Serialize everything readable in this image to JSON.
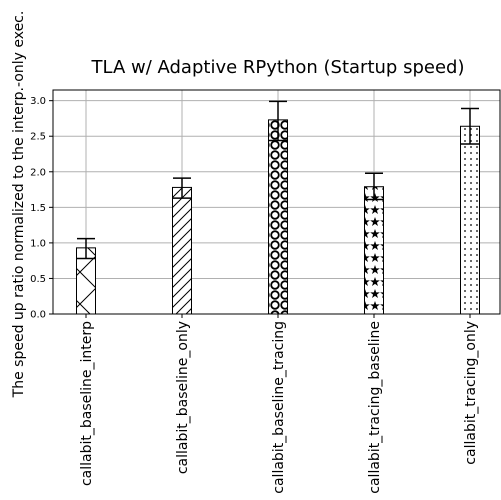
{
  "chart_data": {
    "type": "bar",
    "title": "TLA w/ Adaptive RPython (Startup speed)",
    "xlabel": "",
    "ylabel": "The speed up ratio normalized to the interp.-only exec.",
    "categories": [
      "callabit_baseline_interp",
      "callabit_baseline_only",
      "callabit_baseline_tracing",
      "callabit_tracing_baseline",
      "callabit_tracing_only"
    ],
    "values": [
      0.93,
      1.78,
      2.73,
      1.79,
      2.64
    ],
    "error_low": [
      0.78,
      1.63,
      2.44,
      1.61,
      2.39
    ],
    "error_high": [
      1.06,
      1.91,
      2.99,
      1.98,
      2.89
    ],
    "hatches": [
      "x",
      "slash",
      "circle",
      "star",
      "dot"
    ],
    "ylim": [
      0,
      3.15
    ],
    "yticks": [
      "0.0",
      "0.5",
      "1.0",
      "1.5",
      "2.0",
      "2.5",
      "3.0"
    ],
    "grid": true,
    "bar_color": "#ffffff",
    "edge_color": "#000000",
    "grid_color": "#b0b0b0"
  }
}
